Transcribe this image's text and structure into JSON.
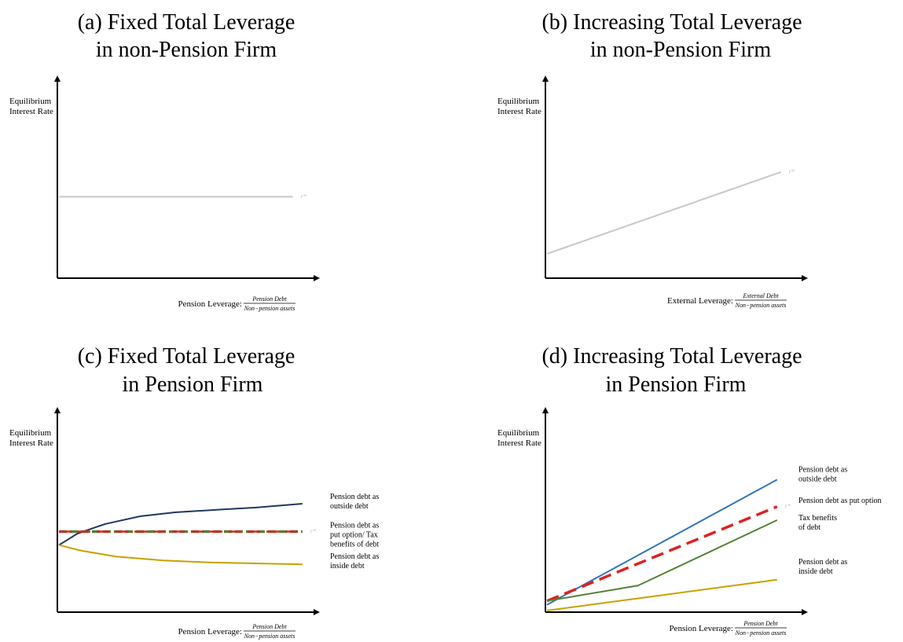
{
  "chart_data": [
    {
      "type": "line",
      "title_line1": "(a) Fixed Total Leverage",
      "title_line2": "in non-Pension Firm",
      "ylabel_line1": "Equilibrium",
      "ylabel_line2": "Interest Rate",
      "xlabel_prefix": "Pension Leverage:",
      "xlabel_num": "Pension Debt",
      "xlabel_den": "Non−pension assets",
      "xlim": [
        0,
        1
      ],
      "ylim": [
        0,
        1
      ],
      "series": [
        {
          "name": "",
          "color": "#c8c8c8",
          "dash": "solid",
          "width": 2,
          "x": [
            0,
            0.96
          ],
          "y": [
            0.42,
            0.42
          ],
          "end_label": "r*"
        }
      ]
    },
    {
      "type": "line",
      "title_line1": "(b) Increasing Total Leverage",
      "title_line2": "in non-Pension Firm",
      "ylabel_line1": "Equilibrium",
      "ylabel_line2": "Interest Rate",
      "xlabel_prefix": "External Leverage:",
      "xlabel_num": "External Debt",
      "xlabel_den": "Non−pension assets",
      "xlim": [
        0,
        1
      ],
      "ylim": [
        0,
        1
      ],
      "series": [
        {
          "name": "",
          "color": "#c8c8c8",
          "dash": "solid",
          "width": 2,
          "x": [
            0,
            0.96
          ],
          "y": [
            0.12,
            0.55
          ],
          "end_label": "r*"
        }
      ]
    },
    {
      "type": "line",
      "title_line1": "(c) Fixed Total Leverage",
      "title_line2": "in Pension Firm",
      "ylabel_line1": "Equilibrium",
      "ylabel_line2": "Interest Rate",
      "xlabel_prefix": "Pension Leverage:",
      "xlabel_num": "Pension Debt",
      "xlabel_den": "Non−pension assets",
      "xlim": [
        0,
        1
      ],
      "ylim": [
        0,
        1
      ],
      "series": [
        {
          "name": "Pension debt as outside debt",
          "color": "#1f3864",
          "dash": "solid",
          "width": 2,
          "x": [
            0,
            0.08,
            0.2,
            0.35,
            0.5,
            0.7,
            0.85,
            1.05
          ],
          "y": [
            0.34,
            0.4,
            0.45,
            0.49,
            0.51,
            0.525,
            0.535,
            0.555
          ]
        },
        {
          "name": "Pension debt as put option/ Tax benefits of debt",
          "color": "#548235",
          "dash": "dashed",
          "width": 3.5,
          "x": [
            0,
            1.05
          ],
          "y": [
            0.41,
            0.41
          ]
        },
        {
          "name": "",
          "color": "#e02020",
          "dash": "longdash",
          "width": 2.5,
          "x": [
            0,
            1.05
          ],
          "y": [
            0.41,
            0.41
          ],
          "end_label": "r*"
        },
        {
          "name": "Pension debt as inside debt",
          "color": "#c9a000",
          "dash": "solid",
          "width": 2,
          "x": [
            0,
            0.1,
            0.25,
            0.45,
            0.65,
            0.85,
            1.05
          ],
          "y": [
            0.34,
            0.31,
            0.28,
            0.26,
            0.25,
            0.245,
            0.24
          ]
        }
      ],
      "annotations": [
        {
          "lines": [
            "Pension debt as",
            "outside debt"
          ],
          "anchor_y": 0.58
        },
        {
          "lines": [
            "Pension debt as",
            "put option/ Tax",
            "benefits of debt"
          ],
          "anchor_y": 0.43
        },
        {
          "lines": [
            "Pension debt as",
            "inside debt"
          ],
          "anchor_y": 0.27
        }
      ]
    },
    {
      "type": "line",
      "title_line1": "(d) Increasing Total Leverage",
      "title_line2": "in Pension Firm",
      "ylabel_line1": "Equilibrium",
      "ylabel_line2": "Interest Rate",
      "xlabel_prefix": "Pension Leverage:",
      "xlabel_num": "Pension Debt",
      "xlabel_den": "Non−pension assets",
      "xlim": [
        0,
        1
      ],
      "ylim": [
        0,
        1
      ],
      "series": [
        {
          "name": "Pension debt as outside debt",
          "color": "#2e75b6",
          "dash": "solid",
          "width": 2,
          "x": [
            0,
            0.96
          ],
          "y": [
            0.03,
            0.68
          ]
        },
        {
          "name": "",
          "color": "#e02020",
          "dash": "longdash",
          "width": 3.5,
          "x": [
            0,
            0.96
          ],
          "y": [
            0.05,
            0.54
          ],
          "end_label": "r*"
        },
        {
          "name": "Tax benefits of debt",
          "color": "#548235",
          "dash": "solid",
          "width": 2,
          "x": [
            0,
            0.38,
            0.96
          ],
          "y": [
            0.05,
            0.13,
            0.47
          ]
        },
        {
          "name": "Pension debt as inside debt",
          "color": "#c9a000",
          "dash": "solid",
          "width": 2,
          "x": [
            0,
            0.96
          ],
          "y": [
            0.0,
            0.16
          ]
        }
      ],
      "annotations": [
        {
          "lines": [
            "Pension debt as",
            "outside debt"
          ],
          "anchor_y": 0.72
        },
        {
          "lines": [
            "Pension debt as put option"
          ],
          "anchor_y": 0.56
        },
        {
          "lines": [
            "Tax benefits",
            "of debt"
          ],
          "anchor_y": 0.47
        },
        {
          "lines": [
            "Pension debt as",
            "inside debt"
          ],
          "anchor_y": 0.24
        }
      ]
    }
  ]
}
